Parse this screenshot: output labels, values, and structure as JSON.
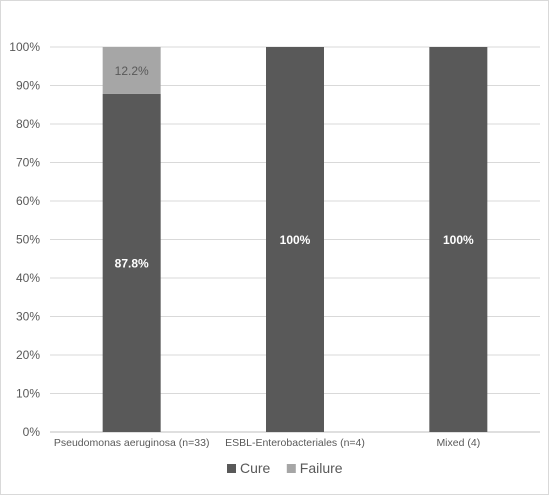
{
  "chart_data": {
    "type": "bar",
    "stacked": true,
    "percent_stacked": true,
    "categories": [
      "Pseudomonas aeruginosa (n=33)",
      "ESBL-Enterobacteriales (n=4)",
      "Mixed (4)"
    ],
    "series": [
      {
        "name": "Cure",
        "values": [
          87.8,
          100,
          100
        ],
        "color": "#595959",
        "labels": [
          "87.8%",
          "100%",
          "100%"
        ],
        "label_color": "#ffffff"
      },
      {
        "name": "Failure",
        "values": [
          12.2,
          0,
          0
        ],
        "color": "#a6a6a6",
        "labels": [
          "12.2%",
          "",
          ""
        ],
        "label_color": "#595959"
      }
    ],
    "ylim": [
      0,
      100
    ],
    "yticks": [
      "0%",
      "10%",
      "20%",
      "30%",
      "40%",
      "50%",
      "60%",
      "70%",
      "80%",
      "90%",
      "100%"
    ],
    "grid": true,
    "legend_position": "bottom"
  }
}
